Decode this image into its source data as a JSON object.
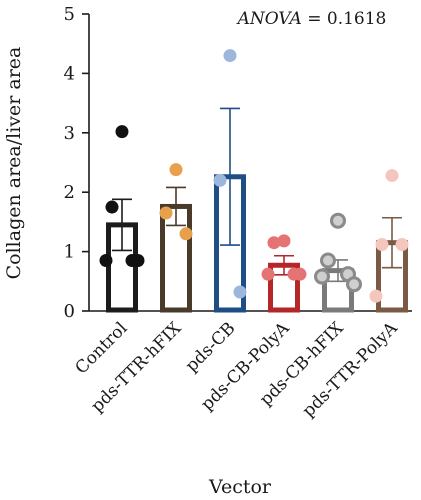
{
  "chart_data": {
    "type": "bar",
    "title": "",
    "xlabel": "Vector",
    "ylabel": "Collagen area/liver area",
    "ylim": [
      0,
      5
    ],
    "yticks": [
      0,
      1,
      2,
      3,
      4,
      5
    ],
    "annotation": {
      "label": "ANOVA",
      "eq": " = 0.1618"
    },
    "categories": [
      "Control",
      "pds-TTR-hFIX",
      "pds-CB",
      "pds-CB-PolyA",
      "pds-CB-hFIX",
      "pds-TTR-PolyA"
    ],
    "series": [
      {
        "values": [
          1.45,
          1.76,
          2.26,
          0.77,
          0.68,
          1.15
        ],
        "sem": [
          0.43,
          0.32,
          1.15,
          0.16,
          0.18,
          0.42
        ],
        "edge_colors": [
          "#1c1c1c",
          "#4a3a2a",
          "#1f4e85",
          "#b5262b",
          "#7a7a7a",
          "#7a5a45"
        ],
        "point_colors": [
          "#111111",
          "#e8a04d",
          "#9db6dc",
          "#e57373",
          "#9e9e9e",
          "#f4c6bd"
        ],
        "points": [
          [
            3.02,
            1.75,
            0.85,
            0.85,
            0.85
          ],
          [
            2.38,
            1.65,
            1.3
          ],
          [
            4.3,
            2.2,
            0.32
          ],
          [
            1.18,
            1.15,
            0.62,
            0.62,
            0.62
          ],
          [
            1.52,
            0.85,
            0.62,
            0.58,
            0.45
          ],
          [
            2.28,
            1.12,
            1.12,
            0.25
          ]
        ]
      }
    ],
    "grid": false,
    "legend": "none"
  }
}
